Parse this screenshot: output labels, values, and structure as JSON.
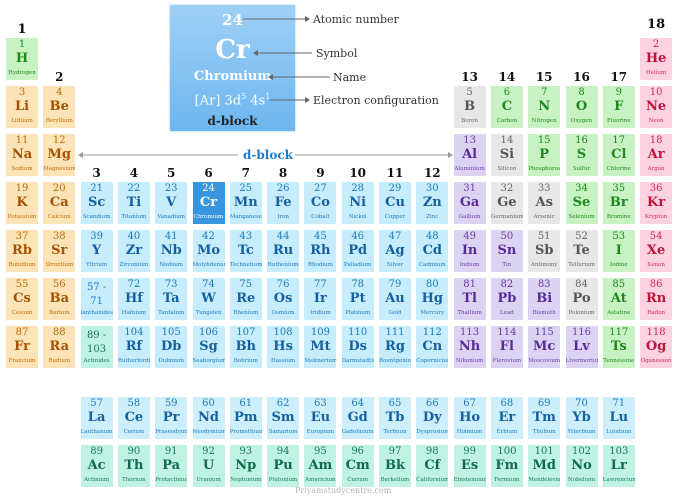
{
  "legend": {
    "atomic_number": "24",
    "symbol": "Cr",
    "name": "Chromium",
    "config_base": "[Ar] 3d",
    "config_sup1": "5",
    "config_mid": " 4s",
    "config_sup2": "1",
    "block": "d-block",
    "labels": {
      "atomic_number": "Atomic number",
      "symbol": "Symbol",
      "name": "Name",
      "electron_configuration": "Electron configuration"
    }
  },
  "d_block_label": "d-block",
  "watermark": "Priyamstudycentre.com",
  "groups": [
    "1",
    "2",
    "3",
    "4",
    "5",
    "6",
    "7",
    "8",
    "9",
    "10",
    "11",
    "12",
    "13",
    "14",
    "15",
    "16",
    "17",
    "18"
  ],
  "colors": {
    "s1": {
      "bg": "#c9f2c4",
      "sym": "#1a8a1a",
      "z": "#1a8a1a"
    },
    "s2": {
      "bg": "#fde3b8",
      "sym": "#a65200",
      "z": "#c16a00"
    },
    "d": {
      "bg": "#c7ecfb",
      "sym": "#15609e",
      "z": "#1a7bbf"
    },
    "f": {
      "bg": "#cdeefb",
      "sym": "#15609e",
      "z": "#1a7bbf"
    },
    "fac": {
      "bg": "#bff1e4",
      "sym": "#0f6b4b",
      "z": "#157a56"
    },
    "pB": {
      "bg": "#e7e7e7",
      "sym": "#555555",
      "z": "#666666"
    },
    "pG": {
      "bg": "#c9f2c4",
      "sym": "#1a8a1a",
      "z": "#1a8a1a"
    },
    "pP": {
      "bg": "#dcd3f3",
      "sym": "#5a2b96",
      "z": "#6b3aa8"
    },
    "pM": {
      "bg": "#d1d1d1",
      "sym": "#4a4a4a",
      "z": "#555555"
    },
    "pN": {
      "bg": "#fbd2df",
      "sym": "#c0123c",
      "z": "#d42a55"
    },
    "sel": {
      "bg": "#3a95df",
      "sym": "#ffffff",
      "z": "#ffffff"
    }
  },
  "elements": [
    {
      "z": "1",
      "s": "H",
      "n": "Hydrogen",
      "c": "s1",
      "col": 1,
      "row": 1
    },
    {
      "z": "2",
      "s": "He",
      "n": "Helium",
      "c": "pN",
      "col": 18,
      "row": 1
    },
    {
      "z": "3",
      "s": "Li",
      "n": "Lithium",
      "c": "s2",
      "col": 1,
      "row": 2
    },
    {
      "z": "4",
      "s": "Be",
      "n": "Beryllium",
      "c": "s2",
      "col": 2,
      "row": 2
    },
    {
      "z": "5",
      "s": "B",
      "n": "Boron",
      "c": "pB",
      "col": 13,
      "row": 2
    },
    {
      "z": "6",
      "s": "C",
      "n": "Carbon",
      "c": "pG",
      "col": 14,
      "row": 2
    },
    {
      "z": "7",
      "s": "N",
      "n": "Nitrogen",
      "c": "pG",
      "col": 15,
      "row": 2
    },
    {
      "z": "8",
      "s": "O",
      "n": "Oxygen",
      "c": "pG",
      "col": 16,
      "row": 2
    },
    {
      "z": "9",
      "s": "F",
      "n": "Fluorine",
      "c": "pG",
      "col": 17,
      "row": 2
    },
    {
      "z": "10",
      "s": "Ne",
      "n": "Neon",
      "c": "pN",
      "col": 18,
      "row": 2
    },
    {
      "z": "11",
      "s": "Na",
      "n": "Sodium",
      "c": "s2",
      "col": 1,
      "row": 3
    },
    {
      "z": "12",
      "s": "Mg",
      "n": "Magnesium",
      "c": "s2",
      "col": 2,
      "row": 3
    },
    {
      "z": "13",
      "s": "Al",
      "n": "Aluminium",
      "c": "pP",
      "col": 13,
      "row": 3
    },
    {
      "z": "14",
      "s": "Si",
      "n": "Silicon",
      "c": "pB",
      "col": 14,
      "row": 3
    },
    {
      "z": "15",
      "s": "P",
      "n": "Phosphorus",
      "c": "pG",
      "col": 15,
      "row": 3
    },
    {
      "z": "16",
      "s": "S",
      "n": "Sulfur",
      "c": "pG",
      "col": 16,
      "row": 3
    },
    {
      "z": "17",
      "s": "Cl",
      "n": "Chlorine",
      "c": "pG",
      "col": 17,
      "row": 3
    },
    {
      "z": "18",
      "s": "Ar",
      "n": "Argon",
      "c": "pN",
      "col": 18,
      "row": 3
    },
    {
      "z": "19",
      "s": "K",
      "n": "Potassium",
      "c": "s2",
      "col": 1,
      "row": 4
    },
    {
      "z": "20",
      "s": "Ca",
      "n": "Calcium",
      "c": "s2",
      "col": 2,
      "row": 4
    },
    {
      "z": "21",
      "s": "Sc",
      "n": "Scandium",
      "c": "d",
      "col": 3,
      "row": 4
    },
    {
      "z": "22",
      "s": "Ti",
      "n": "Titanium",
      "c": "d",
      "col": 4,
      "row": 4
    },
    {
      "z": "23",
      "s": "V",
      "n": "Vanadium",
      "c": "d",
      "col": 5,
      "row": 4
    },
    {
      "z": "24",
      "s": "Cr",
      "n": "Chromium",
      "c": "sel",
      "col": 6,
      "row": 4
    },
    {
      "z": "25",
      "s": "Mn",
      "n": "Manganese",
      "c": "d",
      "col": 7,
      "row": 4
    },
    {
      "z": "26",
      "s": "Fe",
      "n": "Iron",
      "c": "d",
      "col": 8,
      "row": 4
    },
    {
      "z": "27",
      "s": "Co",
      "n": "Cobalt",
      "c": "d",
      "col": 9,
      "row": 4
    },
    {
      "z": "28",
      "s": "Ni",
      "n": "Nickel",
      "c": "d",
      "col": 10,
      "row": 4
    },
    {
      "z": "29",
      "s": "Cu",
      "n": "Copper",
      "c": "d",
      "col": 11,
      "row": 4
    },
    {
      "z": "30",
      "s": "Zn",
      "n": "Zinc",
      "c": "d",
      "col": 12,
      "row": 4
    },
    {
      "z": "31",
      "s": "Ga",
      "n": "Gallium",
      "c": "pP",
      "col": 13,
      "row": 4
    },
    {
      "z": "32",
      "s": "Ge",
      "n": "Germanium",
      "c": "pB",
      "col": 14,
      "row": 4
    },
    {
      "z": "33",
      "s": "As",
      "n": "Arsenic",
      "c": "pB",
      "col": 15,
      "row": 4
    },
    {
      "z": "34",
      "s": "Se",
      "n": "Selenium",
      "c": "pG",
      "col": 16,
      "row": 4
    },
    {
      "z": "35",
      "s": "Br",
      "n": "Bromine",
      "c": "pG",
      "col": 17,
      "row": 4
    },
    {
      "z": "36",
      "s": "Kr",
      "n": "Krypton",
      "c": "pN",
      "col": 18,
      "row": 4
    },
    {
      "z": "37",
      "s": "Rb",
      "n": "Rubidium",
      "c": "s2",
      "col": 1,
      "row": 5
    },
    {
      "z": "38",
      "s": "Sr",
      "n": "Strontium",
      "c": "s2",
      "col": 2,
      "row": 5
    },
    {
      "z": "39",
      "s": "Y",
      "n": "Yttrium",
      "c": "d",
      "col": 3,
      "row": 5
    },
    {
      "z": "40",
      "s": "Zr",
      "n": "Zirconium",
      "c": "d",
      "col": 4,
      "row": 5
    },
    {
      "z": "41",
      "s": "Nb",
      "n": "Niobium",
      "c": "d",
      "col": 5,
      "row": 5
    },
    {
      "z": "42",
      "s": "Mo",
      "n": "Molybdenum",
      "c": "d",
      "col": 6,
      "row": 5
    },
    {
      "z": "43",
      "s": "Tc",
      "n": "Technetium",
      "c": "d",
      "col": 7,
      "row": 5
    },
    {
      "z": "44",
      "s": "Ru",
      "n": "Ruthenium",
      "c": "d",
      "col": 8,
      "row": 5
    },
    {
      "z": "45",
      "s": "Rh",
      "n": "Rhodium",
      "c": "d",
      "col": 9,
      "row": 5
    },
    {
      "z": "46",
      "s": "Pd",
      "n": "Palladium",
      "c": "d",
      "col": 10,
      "row": 5
    },
    {
      "z": "47",
      "s": "Ag",
      "n": "Silver",
      "c": "d",
      "col": 11,
      "row": 5
    },
    {
      "z": "48",
      "s": "Cd",
      "n": "Cadmium",
      "c": "d",
      "col": 12,
      "row": 5
    },
    {
      "z": "49",
      "s": "In",
      "n": "Indium",
      "c": "pP",
      "col": 13,
      "row": 5
    },
    {
      "z": "50",
      "s": "Sn",
      "n": "Tin",
      "c": "pP",
      "col": 14,
      "row": 5
    },
    {
      "z": "51",
      "s": "Sb",
      "n": "Antimony",
      "c": "pB",
      "col": 15,
      "row": 5
    },
    {
      "z": "52",
      "s": "Te",
      "n": "Tellurium",
      "c": "pB",
      "col": 16,
      "row": 5
    },
    {
      "z": "53",
      "s": "I",
      "n": "Iodine",
      "c": "pG",
      "col": 17,
      "row": 5
    },
    {
      "z": "54",
      "s": "Xe",
      "n": "Xenon",
      "c": "pN",
      "col": 18,
      "row": 5
    },
    {
      "z": "55",
      "s": "Cs",
      "n": "Cesium",
      "c": "s2",
      "col": 1,
      "row": 6
    },
    {
      "z": "56",
      "s": "Ba",
      "n": "Barium",
      "c": "s2",
      "col": 2,
      "row": 6
    },
    {
      "z": "57 -",
      "z2": "71",
      "n": "lanthanides",
      "c": "d",
      "col": 3,
      "row": 6,
      "range": true
    },
    {
      "z": "72",
      "s": "Hf",
      "n": "Hafnium",
      "c": "d",
      "col": 4,
      "row": 6
    },
    {
      "z": "73",
      "s": "Ta",
      "n": "Tantalum",
      "c": "d",
      "col": 5,
      "row": 6
    },
    {
      "z": "74",
      "s": "W",
      "n": "Tungsten",
      "c": "d",
      "col": 6,
      "row": 6
    },
    {
      "z": "75",
      "s": "Re",
      "n": "Rhenium",
      "c": "d",
      "col": 7,
      "row": 6
    },
    {
      "z": "76",
      "s": "Os",
      "n": "Osmium",
      "c": "d",
      "col": 8,
      "row": 6
    },
    {
      "z": "77",
      "s": "Ir",
      "n": "Iridium",
      "c": "d",
      "col": 9,
      "row": 6
    },
    {
      "z": "78",
      "s": "Pt",
      "n": "Platinum",
      "c": "d",
      "col": 10,
      "row": 6
    },
    {
      "z": "79",
      "s": "Au",
      "n": "Gold",
      "c": "d",
      "col": 11,
      "row": 6
    },
    {
      "z": "80",
      "s": "Hg",
      "n": "Mercury",
      "c": "d",
      "col": 12,
      "row": 6
    },
    {
      "z": "81",
      "s": "Tl",
      "n": "Thallium",
      "c": "pP",
      "col": 13,
      "row": 6
    },
    {
      "z": "82",
      "s": "Pb",
      "n": "Lead",
      "c": "pP",
      "col": 14,
      "row": 6
    },
    {
      "z": "83",
      "s": "Bi",
      "n": "Bismuth",
      "c": "pP",
      "col": 15,
      "row": 6
    },
    {
      "z": "84",
      "s": "Po",
      "n": "Polonium",
      "c": "pB",
      "col": 16,
      "row": 6
    },
    {
      "z": "85",
      "s": "At",
      "n": "Astatine",
      "c": "pG",
      "col": 17,
      "row": 6
    },
    {
      "z": "86",
      "s": "Rn",
      "n": "Radon",
      "c": "pN",
      "col": 18,
      "row": 6
    },
    {
      "z": "87",
      "s": "Fr",
      "n": "Francium",
      "c": "s2",
      "col": 1,
      "row": 7
    },
    {
      "z": "88",
      "s": "Ra",
      "n": "Radium",
      "c": "s2",
      "col": 2,
      "row": 7
    },
    {
      "z": "89 -",
      "z2": "103",
      "n": "Actinides",
      "c": "fac",
      "col": 3,
      "row": 7,
      "range": true
    },
    {
      "z": "104",
      "s": "Rf",
      "n": "Rutherfordium",
      "c": "d",
      "col": 4,
      "row": 7
    },
    {
      "z": "105",
      "s": "Db",
      "n": "Dubnium",
      "c": "d",
      "col": 5,
      "row": 7
    },
    {
      "z": "106",
      "s": "Sg",
      "n": "Seaborgium",
      "c": "d",
      "col": 6,
      "row": 7
    },
    {
      "z": "107",
      "s": "Bh",
      "n": "Bohrium",
      "c": "d",
      "col": 7,
      "row": 7
    },
    {
      "z": "108",
      "s": "Hs",
      "n": "Hassium",
      "c": "d",
      "col": 8,
      "row": 7
    },
    {
      "z": "109",
      "s": "Mt",
      "n": "Meitnerium",
      "c": "d",
      "col": 9,
      "row": 7
    },
    {
      "z": "110",
      "s": "Ds",
      "n": "Darmstadtium",
      "c": "d",
      "col": 10,
      "row": 7
    },
    {
      "z": "111",
      "s": "Rg",
      "n": "Roentgenium",
      "c": "d",
      "col": 11,
      "row": 7
    },
    {
      "z": "112",
      "s": "Cn",
      "n": "Copernicium",
      "c": "d",
      "col": 12,
      "row": 7
    },
    {
      "z": "113",
      "s": "Nh",
      "n": "Nihonium",
      "c": "pP",
      "col": 13,
      "row": 7
    },
    {
      "z": "114",
      "s": "Fl",
      "n": "Flerovium",
      "c": "pP",
      "col": 14,
      "row": 7
    },
    {
      "z": "115",
      "s": "Mc",
      "n": "Moscovium",
      "c": "pP",
      "col": 15,
      "row": 7
    },
    {
      "z": "116",
      "s": "Lv",
      "n": "Livermorium",
      "c": "pP",
      "col": 16,
      "row": 7
    },
    {
      "z": "117",
      "s": "Ts",
      "n": "Tennessine",
      "c": "pG",
      "col": 17,
      "row": 7
    },
    {
      "z": "118",
      "s": "Og",
      "n": "Oganesson",
      "c": "pN",
      "col": 18,
      "row": 7
    },
    {
      "z": "57",
      "s": "La",
      "n": "Lanthanum",
      "c": "f",
      "col": 3,
      "row": 8
    },
    {
      "z": "58",
      "s": "Ce",
      "n": "Cerium",
      "c": "f",
      "col": 4,
      "row": 8
    },
    {
      "z": "59",
      "s": "Pr",
      "n": "Praseodymium",
      "c": "f",
      "col": 5,
      "row": 8
    },
    {
      "z": "60",
      "s": "Nd",
      "n": "Neodymium",
      "c": "f",
      "col": 6,
      "row": 8
    },
    {
      "z": "61",
      "s": "Pm",
      "n": "Promethium",
      "c": "f",
      "col": 7,
      "row": 8
    },
    {
      "z": "62",
      "s": "Sm",
      "n": "Samarium",
      "c": "f",
      "col": 8,
      "row": 8
    },
    {
      "z": "63",
      "s": "Eu",
      "n": "Europium",
      "c": "f",
      "col": 9,
      "row": 8
    },
    {
      "z": "64",
      "s": "Gd",
      "n": "Gadolinium",
      "c": "f",
      "col": 10,
      "row": 8
    },
    {
      "z": "65",
      "s": "Tb",
      "n": "Terbium",
      "c": "f",
      "col": 11,
      "row": 8
    },
    {
      "z": "66",
      "s": "Dy",
      "n": "Dysprosium",
      "c": "f",
      "col": 12,
      "row": 8
    },
    {
      "z": "67",
      "s": "Ho",
      "n": "Holmium",
      "c": "f",
      "col": 13,
      "row": 8
    },
    {
      "z": "68",
      "s": "Er",
      "n": "Erbium",
      "c": "f",
      "col": 14,
      "row": 8
    },
    {
      "z": "69",
      "s": "Tm",
      "n": "Thulium",
      "c": "f",
      "col": 15,
      "row": 8
    },
    {
      "z": "70",
      "s": "Yb",
      "n": "Ytterbium",
      "c": "f",
      "col": 16,
      "row": 8
    },
    {
      "z": "71",
      "s": "Lu",
      "n": "Lutetium",
      "c": "f",
      "col": 17,
      "row": 8
    },
    {
      "z": "89",
      "s": "Ac",
      "n": "Actinium",
      "c": "fac",
      "col": 3,
      "row": 9
    },
    {
      "z": "90",
      "s": "Th",
      "n": "Thorium",
      "c": "fac",
      "col": 4,
      "row": 9
    },
    {
      "z": "91",
      "s": "Pa",
      "n": "Protactinium",
      "c": "fac",
      "col": 5,
      "row": 9
    },
    {
      "z": "92",
      "s": "U",
      "n": "Uranium",
      "c": "fac",
      "col": 6,
      "row": 9
    },
    {
      "z": "93",
      "s": "Np",
      "n": "Neptunium",
      "c": "fac",
      "col": 7,
      "row": 9
    },
    {
      "z": "94",
      "s": "Pu",
      "n": "Plutonium",
      "c": "fac",
      "col": 8,
      "row": 9
    },
    {
      "z": "95",
      "s": "Am",
      "n": "Americium",
      "c": "fac",
      "col": 9,
      "row": 9
    },
    {
      "z": "96",
      "s": "Cm",
      "n": "Curium",
      "c": "fac",
      "col": 10,
      "row": 9
    },
    {
      "z": "97",
      "s": "Bk",
      "n": "Berkelium",
      "c": "fac",
      "col": 11,
      "row": 9
    },
    {
      "z": "98",
      "s": "Cf",
      "n": "Californium",
      "c": "fac",
      "col": 12,
      "row": 9
    },
    {
      "z": "99",
      "s": "Es",
      "n": "Einsteinium",
      "c": "fac",
      "col": 13,
      "row": 9
    },
    {
      "z": "100",
      "s": "Fm",
      "n": "Fermium",
      "c": "fac",
      "col": 14,
      "row": 9
    },
    {
      "z": "101",
      "s": "Md",
      "n": "Mendelevium",
      "c": "fac",
      "col": 15,
      "row": 9
    },
    {
      "z": "102",
      "s": "No",
      "n": "Nobelium",
      "c": "fac",
      "col": 16,
      "row": 9
    },
    {
      "z": "103",
      "s": "Lr",
      "n": "Lawrencium",
      "c": "fac",
      "col": 17,
      "row": 9
    }
  ]
}
